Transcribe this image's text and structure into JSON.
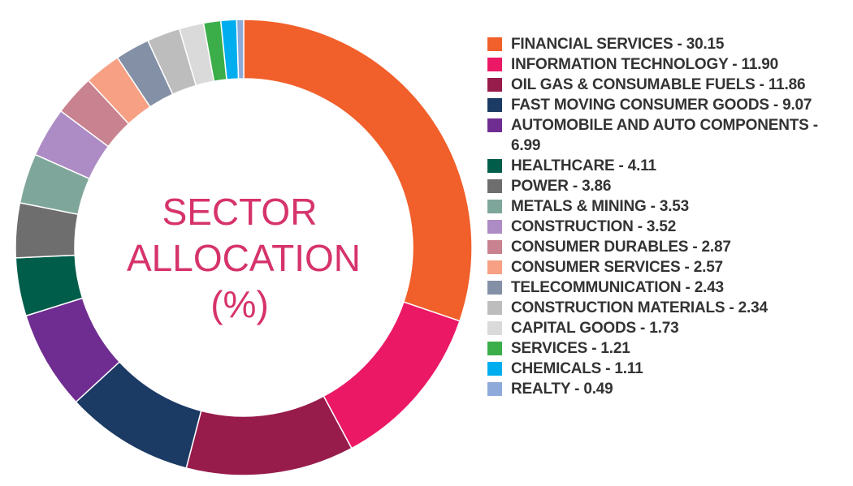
{
  "chart_data": {
    "type": "pie",
    "title_lines": [
      "SECTOR",
      "ALLOCATION",
      "(%)"
    ],
    "labels": [
      "FINANCIAL SERVICES - 30.15",
      "INFORMATION TECHNOLOGY - 11.90",
      "OIL GAS & CONSUMABLE FUELS - 11.86",
      "FAST MOVING CONSUMER GOODS - 9.07",
      "AUTOMOBILE AND AUTO COMPONENTS - 6.99",
      "HEALTHCARE - 4.11",
      "POWER - 3.86",
      "METALS & MINING - 3.53",
      "CONSTRUCTION - 3.52",
      "CONSUMER DURABLES - 2.87",
      "CONSUMER SERVICES - 2.57",
      "TELECOMMUNICATION - 2.43",
      "CONSTRUCTION MATERIALS - 2.34",
      "CAPITAL GOODS - 1.73",
      "SERVICES  - 1.21",
      "CHEMICALS - 1.11",
      "REALTY  - 0.49"
    ],
    "values": [
      30.15,
      11.9,
      11.86,
      9.07,
      6.99,
      4.11,
      3.86,
      3.53,
      3.52,
      2.87,
      2.57,
      2.43,
      2.34,
      1.73,
      1.21,
      1.11,
      0.49
    ],
    "colors": [
      "#f15f2a",
      "#eb1866",
      "#971b4b",
      "#1b3a64",
      "#6f2d91",
      "#005d4a",
      "#6e6e6e",
      "#7fa69a",
      "#ad8bc4",
      "#c9828f",
      "#f7a084",
      "#8390a6",
      "#bdbdbd",
      "#dadada",
      "#3bae49",
      "#00aeef",
      "#8eaadb"
    ],
    "legend_position": "right"
  }
}
